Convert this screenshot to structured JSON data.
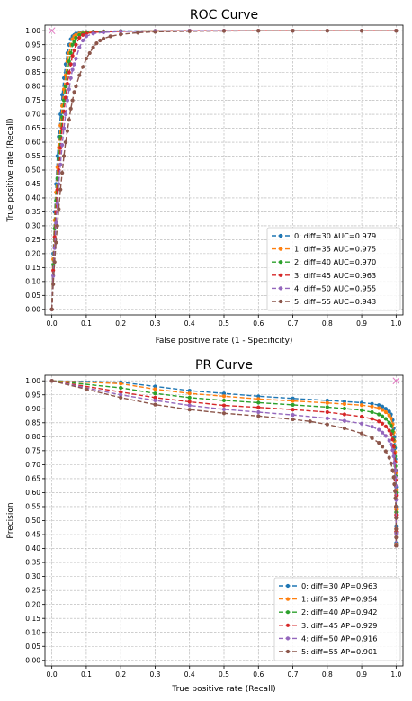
{
  "chart_data": [
    {
      "id": "roc",
      "type": "line",
      "title": "ROC Curve",
      "xlabel": "False positive rate (1 - Specificity)",
      "ylabel": "True positive rate (Recall)",
      "xlim": [
        -0.02,
        1.02
      ],
      "ylim": [
        -0.02,
        1.02
      ],
      "xticks": [
        0.0,
        0.1,
        0.2,
        0.3,
        0.4,
        0.5,
        0.6,
        0.7,
        0.8,
        0.9,
        1.0
      ],
      "yticks": [
        0.0,
        0.05,
        0.1,
        0.15,
        0.2,
        0.25,
        0.3,
        0.35,
        0.4,
        0.45,
        0.5,
        0.55,
        0.6,
        0.65,
        0.7,
        0.75,
        0.8,
        0.85,
        0.9,
        0.95,
        1.0
      ],
      "xticklabels": [
        "0.0",
        "0.1",
        "0.2",
        "0.3",
        "0.4",
        "0.5",
        "0.6",
        "0.7",
        "0.8",
        "0.9",
        "1.0"
      ],
      "yticklabels": [
        "0.00",
        "0.05",
        "0.10",
        "0.15",
        "0.20",
        "0.25",
        "0.30",
        "0.35",
        "0.40",
        "0.45",
        "0.50",
        "0.55",
        "0.60",
        "0.65",
        "0.70",
        "0.75",
        "0.80",
        "0.85",
        "0.90",
        "0.95",
        "1.00"
      ],
      "grid": true,
      "legend_position": "lower-right",
      "ideal_point": [
        0.0,
        1.0
      ],
      "ideal_point_color": "#e377c2",
      "series": [
        {
          "name": "0: diff=30 AUC=0.979",
          "color": "#1f77b4",
          "x": [
            0.0,
            0.004,
            0.008,
            0.012,
            0.016,
            0.02,
            0.025,
            0.03,
            0.035,
            0.04,
            0.045,
            0.05,
            0.055,
            0.06,
            0.065,
            0.07,
            0.08,
            0.09,
            0.1,
            0.12,
            0.15,
            0.2,
            0.3,
            0.4,
            0.5,
            0.6,
            0.7,
            0.8,
            0.9,
            1.0
          ],
          "y": [
            0.0,
            0.2,
            0.35,
            0.45,
            0.55,
            0.62,
            0.7,
            0.77,
            0.83,
            0.88,
            0.92,
            0.95,
            0.97,
            0.98,
            0.985,
            0.99,
            0.993,
            0.995,
            0.996,
            0.997,
            0.998,
            0.999,
            0.999,
            1.0,
            1.0,
            1.0,
            1.0,
            1.0,
            1.0,
            1.0
          ]
        },
        {
          "name": "1: diff=35 AUC=0.975",
          "color": "#ff7f0e",
          "x": [
            0.0,
            0.004,
            0.008,
            0.012,
            0.016,
            0.02,
            0.025,
            0.03,
            0.035,
            0.04,
            0.045,
            0.05,
            0.055,
            0.06,
            0.065,
            0.07,
            0.08,
            0.09,
            0.1,
            0.12,
            0.15,
            0.2,
            0.3,
            0.4,
            0.5,
            0.6,
            0.7,
            0.8,
            0.9,
            1.0
          ],
          "y": [
            0.0,
            0.18,
            0.32,
            0.42,
            0.51,
            0.58,
            0.66,
            0.73,
            0.79,
            0.84,
            0.89,
            0.92,
            0.95,
            0.97,
            0.98,
            0.985,
            0.99,
            0.993,
            0.995,
            0.996,
            0.997,
            0.998,
            0.999,
            1.0,
            1.0,
            1.0,
            1.0,
            1.0,
            1.0,
            1.0
          ]
        },
        {
          "name": "2: diff=40 AUC=0.970",
          "color": "#2ca02c",
          "x": [
            0.0,
            0.004,
            0.008,
            0.012,
            0.016,
            0.02,
            0.025,
            0.03,
            0.035,
            0.04,
            0.045,
            0.05,
            0.055,
            0.06,
            0.065,
            0.07,
            0.08,
            0.09,
            0.1,
            0.12,
            0.15,
            0.2,
            0.3,
            0.4,
            0.5,
            0.6,
            0.7,
            0.8,
            0.9,
            1.0
          ],
          "y": [
            0.0,
            0.16,
            0.29,
            0.39,
            0.47,
            0.54,
            0.62,
            0.69,
            0.75,
            0.8,
            0.85,
            0.89,
            0.92,
            0.95,
            0.96,
            0.975,
            0.985,
            0.99,
            0.993,
            0.995,
            0.997,
            0.998,
            0.999,
            1.0,
            1.0,
            1.0,
            1.0,
            1.0,
            1.0,
            1.0
          ]
        },
        {
          "name": "3: diff=45 AUC=0.963",
          "color": "#d62728",
          "x": [
            0.0,
            0.004,
            0.008,
            0.012,
            0.016,
            0.02,
            0.025,
            0.03,
            0.035,
            0.04,
            0.045,
            0.05,
            0.055,
            0.06,
            0.065,
            0.07,
            0.08,
            0.09,
            0.1,
            0.12,
            0.15,
            0.2,
            0.3,
            0.4,
            0.5,
            0.6,
            0.7,
            0.8,
            0.9,
            1.0
          ],
          "y": [
            0.0,
            0.14,
            0.26,
            0.35,
            0.43,
            0.5,
            0.58,
            0.65,
            0.71,
            0.76,
            0.81,
            0.85,
            0.88,
            0.91,
            0.93,
            0.95,
            0.975,
            0.985,
            0.99,
            0.994,
            0.996,
            0.998,
            0.999,
            1.0,
            1.0,
            1.0,
            1.0,
            1.0,
            1.0,
            1.0
          ]
        },
        {
          "name": "4: diff=50 AUC=0.955",
          "color": "#9467bd",
          "x": [
            0.0,
            0.004,
            0.008,
            0.012,
            0.016,
            0.02,
            0.025,
            0.03,
            0.035,
            0.04,
            0.045,
            0.05,
            0.055,
            0.06,
            0.065,
            0.07,
            0.08,
            0.09,
            0.1,
            0.12,
            0.15,
            0.2,
            0.3,
            0.4,
            0.5,
            0.6,
            0.7,
            0.8,
            0.9,
            1.0
          ],
          "y": [
            0.0,
            0.12,
            0.22,
            0.31,
            0.38,
            0.45,
            0.52,
            0.59,
            0.65,
            0.7,
            0.75,
            0.79,
            0.83,
            0.86,
            0.88,
            0.9,
            0.94,
            0.965,
            0.98,
            0.99,
            0.994,
            0.997,
            0.999,
            1.0,
            1.0,
            1.0,
            1.0,
            1.0,
            1.0,
            1.0
          ]
        },
        {
          "name": "5: diff=55 AUC=0.943",
          "color": "#8c564b",
          "x": [
            0.0,
            0.004,
            0.008,
            0.012,
            0.016,
            0.02,
            0.025,
            0.03,
            0.035,
            0.04,
            0.045,
            0.05,
            0.055,
            0.06,
            0.065,
            0.07,
            0.08,
            0.09,
            0.1,
            0.11,
            0.12,
            0.13,
            0.14,
            0.15,
            0.17,
            0.2,
            0.25,
            0.3,
            0.4,
            0.5,
            0.6,
            0.7,
            0.8,
            0.9,
            1.0
          ],
          "y": [
            0.0,
            0.09,
            0.17,
            0.24,
            0.3,
            0.36,
            0.43,
            0.49,
            0.55,
            0.6,
            0.64,
            0.68,
            0.72,
            0.75,
            0.78,
            0.8,
            0.84,
            0.87,
            0.9,
            0.92,
            0.94,
            0.955,
            0.965,
            0.972,
            0.98,
            0.987,
            0.993,
            0.996,
            0.998,
            0.999,
            1.0,
            1.0,
            1.0,
            1.0,
            1.0
          ]
        }
      ]
    },
    {
      "id": "pr",
      "type": "line",
      "title": "PR Curve",
      "xlabel": "True positive rate (Recall)",
      "ylabel": "Precision",
      "xlim": [
        -0.02,
        1.02
      ],
      "ylim": [
        -0.02,
        1.02
      ],
      "xticks": [
        0.0,
        0.1,
        0.2,
        0.3,
        0.4,
        0.5,
        0.6,
        0.7,
        0.8,
        0.9,
        1.0
      ],
      "yticks": [
        0.0,
        0.05,
        0.1,
        0.15,
        0.2,
        0.25,
        0.3,
        0.35,
        0.4,
        0.45,
        0.5,
        0.55,
        0.6,
        0.65,
        0.7,
        0.75,
        0.8,
        0.85,
        0.9,
        0.95,
        1.0
      ],
      "xticklabels": [
        "0.0",
        "0.1",
        "0.2",
        "0.3",
        "0.4",
        "0.5",
        "0.6",
        "0.7",
        "0.8",
        "0.9",
        "1.0"
      ],
      "yticklabels": [
        "0.00",
        "0.05",
        "0.10",
        "0.15",
        "0.20",
        "0.25",
        "0.30",
        "0.35",
        "0.40",
        "0.45",
        "0.50",
        "0.55",
        "0.60",
        "0.65",
        "0.70",
        "0.75",
        "0.80",
        "0.85",
        "0.90",
        "0.95",
        "1.00"
      ],
      "grid": true,
      "legend_position": "lower-right",
      "ideal_point": [
        1.0,
        1.0
      ],
      "ideal_point_color": "#e377c2",
      "series": [
        {
          "name": "0: diff=30 AP=0.963",
          "color": "#1f77b4",
          "x": [
            0.0,
            0.2,
            0.3,
            0.4,
            0.5,
            0.6,
            0.7,
            0.8,
            0.85,
            0.9,
            0.93,
            0.95,
            0.96,
            0.97,
            0.98,
            0.985,
            0.99,
            0.993,
            0.995,
            0.997,
            0.998,
            0.999,
            1.0,
            1.0,
            1.0,
            1.0
          ],
          "y": [
            1.0,
            0.995,
            0.98,
            0.965,
            0.955,
            0.945,
            0.937,
            0.93,
            0.926,
            0.922,
            0.918,
            0.913,
            0.908,
            0.9,
            0.89,
            0.88,
            0.86,
            0.83,
            0.8,
            0.76,
            0.72,
            0.68,
            0.62,
            0.55,
            0.48,
            0.42
          ]
        },
        {
          "name": "1: diff=35 AP=0.954",
          "color": "#ff7f0e",
          "x": [
            0.0,
            0.2,
            0.3,
            0.4,
            0.5,
            0.6,
            0.7,
            0.8,
            0.85,
            0.9,
            0.93,
            0.95,
            0.96,
            0.97,
            0.98,
            0.985,
            0.99,
            0.993,
            0.995,
            0.997,
            0.998,
            0.999,
            1.0,
            1.0,
            1.0,
            1.0
          ],
          "y": [
            1.0,
            0.99,
            0.97,
            0.955,
            0.945,
            0.935,
            0.928,
            0.921,
            0.917,
            0.913,
            0.908,
            0.902,
            0.896,
            0.888,
            0.876,
            0.866,
            0.845,
            0.815,
            0.785,
            0.745,
            0.71,
            0.67,
            0.61,
            0.54,
            0.47,
            0.415
          ]
        },
        {
          "name": "2: diff=40 AP=0.942",
          "color": "#2ca02c",
          "x": [
            0.0,
            0.2,
            0.3,
            0.4,
            0.5,
            0.6,
            0.7,
            0.8,
            0.85,
            0.9,
            0.93,
            0.95,
            0.96,
            0.97,
            0.98,
            0.985,
            0.99,
            0.993,
            0.995,
            0.997,
            0.998,
            0.999,
            1.0,
            1.0,
            1.0,
            1.0
          ],
          "y": [
            1.0,
            0.975,
            0.955,
            0.94,
            0.93,
            0.922,
            0.914,
            0.906,
            0.901,
            0.895,
            0.888,
            0.88,
            0.873,
            0.864,
            0.85,
            0.84,
            0.82,
            0.79,
            0.765,
            0.73,
            0.695,
            0.66,
            0.6,
            0.53,
            0.46,
            0.41
          ]
        },
        {
          "name": "3: diff=45 AP=0.929",
          "color": "#d62728",
          "x": [
            0.0,
            0.2,
            0.3,
            0.4,
            0.5,
            0.6,
            0.7,
            0.8,
            0.85,
            0.9,
            0.93,
            0.95,
            0.96,
            0.97,
            0.98,
            0.985,
            0.99,
            0.993,
            0.995,
            0.997,
            0.998,
            0.999,
            1.0,
            1.0,
            1.0,
            1.0
          ],
          "y": [
            1.0,
            0.96,
            0.94,
            0.925,
            0.912,
            0.905,
            0.897,
            0.888,
            0.88,
            0.872,
            0.864,
            0.855,
            0.847,
            0.837,
            0.822,
            0.81,
            0.79,
            0.765,
            0.74,
            0.71,
            0.68,
            0.645,
            0.59,
            0.52,
            0.46,
            0.41
          ]
        },
        {
          "name": "4: diff=50 AP=0.916",
          "color": "#9467bd",
          "x": [
            0.0,
            0.2,
            0.3,
            0.4,
            0.5,
            0.6,
            0.7,
            0.8,
            0.85,
            0.9,
            0.93,
            0.95,
            0.96,
            0.97,
            0.98,
            0.985,
            0.99,
            0.993,
            0.995,
            0.997,
            0.998,
            0.999,
            1.0,
            1.0,
            1.0,
            1.0
          ],
          "y": [
            1.0,
            0.95,
            0.93,
            0.912,
            0.898,
            0.888,
            0.878,
            0.866,
            0.857,
            0.847,
            0.836,
            0.825,
            0.815,
            0.803,
            0.786,
            0.773,
            0.752,
            0.73,
            0.705,
            0.68,
            0.655,
            0.625,
            0.575,
            0.51,
            0.455,
            0.41
          ]
        },
        {
          "name": "5: diff=55 AP=0.901",
          "color": "#8c564b",
          "x": [
            0.0,
            0.1,
            0.2,
            0.3,
            0.4,
            0.5,
            0.6,
            0.7,
            0.75,
            0.8,
            0.85,
            0.9,
            0.93,
            0.95,
            0.96,
            0.97,
            0.98,
            0.985,
            0.99,
            0.993,
            0.995,
            0.997,
            0.998,
            0.999,
            1.0,
            1.0,
            1.0,
            1.0
          ],
          "y": [
            1.0,
            0.97,
            0.94,
            0.915,
            0.897,
            0.884,
            0.874,
            0.862,
            0.855,
            0.844,
            0.83,
            0.812,
            0.795,
            0.778,
            0.765,
            0.748,
            0.725,
            0.705,
            0.68,
            0.655,
            0.63,
            0.605,
            0.58,
            0.55,
            0.51,
            0.47,
            0.44,
            0.41
          ]
        }
      ]
    }
  ]
}
